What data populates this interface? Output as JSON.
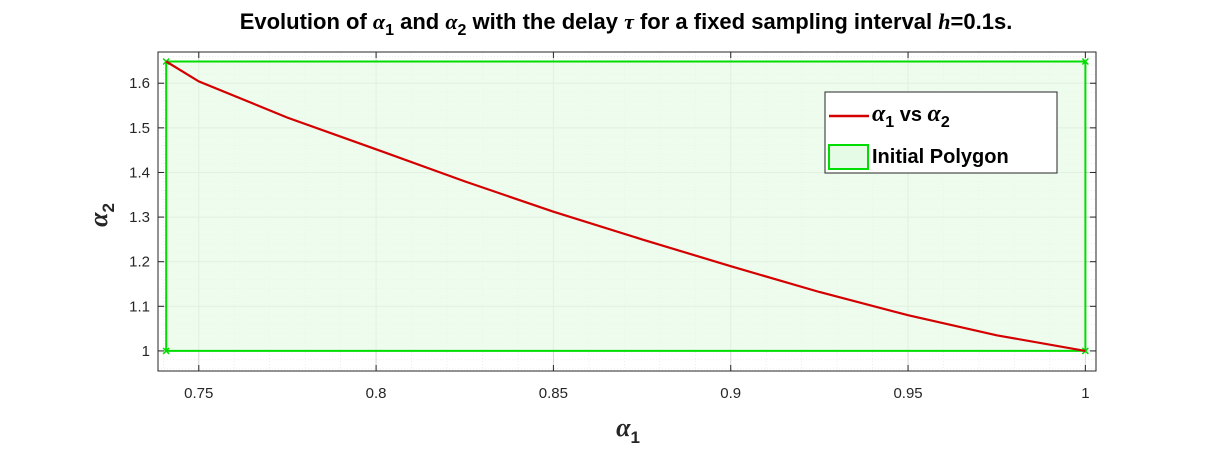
{
  "chart_data": {
    "type": "line",
    "title": "Evolution of α1 and α2 with the delay τ for a fixed sampling interval h=0.1s.",
    "title_parts": {
      "p1": "Evolution of ",
      "a": "α",
      "a1_sub": "1",
      "p2": " and ",
      "a2_sub": "2",
      "p3": " with the delay ",
      "tau": "τ",
      "p4": " for a fixed sampling interval ",
      "h": "h",
      "p5": "=0.1s."
    },
    "xlabel": {
      "symbol": "α",
      "sub": "1"
    },
    "ylabel": {
      "symbol": "α",
      "sub": "2"
    },
    "xlim": [
      0.7385,
      1.003
    ],
    "ylim": [
      0.955,
      1.67
    ],
    "xticks": [
      0.75,
      0.8,
      0.85,
      0.9,
      0.95,
      1
    ],
    "xtick_labels": [
      "0.75",
      "0.8",
      "0.85",
      "0.9",
      "0.95",
      "1"
    ],
    "yticks": [
      1,
      1.1,
      1.2,
      1.3,
      1.4,
      1.5,
      1.6
    ],
    "ytick_labels": [
      "1",
      "1.1",
      "1.2",
      "1.3",
      "1.4",
      "1.5",
      "1.6"
    ],
    "grid": true,
    "minor_grid": true,
    "legend_position": "top-right",
    "series": [
      {
        "name": "α1 vs α2",
        "legend_parts": {
          "a": "α",
          "s1": "1",
          "mid": " vs ",
          "s2": "2"
        },
        "color": "#d40000",
        "x": [
          0.7408,
          0.75,
          0.775,
          0.8,
          0.825,
          0.85,
          0.875,
          0.9,
          0.925,
          0.95,
          0.975,
          1.0
        ],
        "y": [
          1.6487,
          1.604,
          1.523,
          1.452,
          1.38,
          1.312,
          1.25,
          1.19,
          1.132,
          1.08,
          1.035,
          1.0
        ]
      }
    ],
    "polygon": {
      "name": "Initial Polygon",
      "edge_color": "#00dd00",
      "fill_color": "#e6fbe6",
      "vertices": [
        [
          0.7408,
          1.0
        ],
        [
          1.0,
          1.0
        ],
        [
          1.0,
          1.6487
        ],
        [
          0.7408,
          1.6487
        ]
      ]
    }
  }
}
